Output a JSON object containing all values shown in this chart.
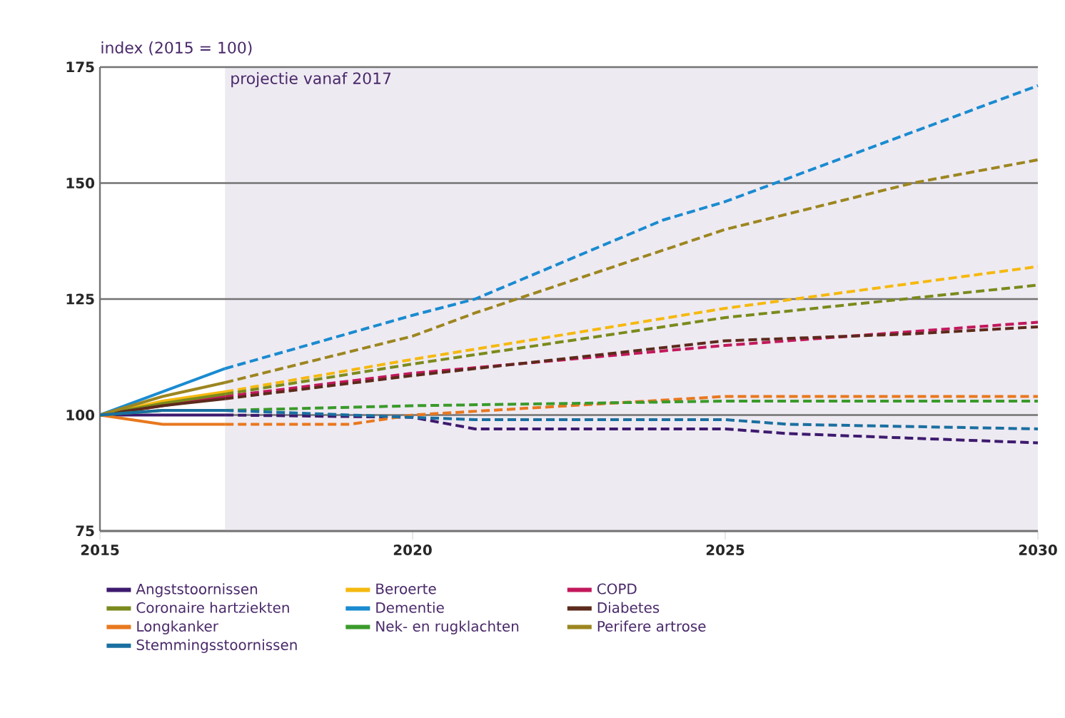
{
  "chart_data": {
    "type": "line",
    "ylabel": "index (2015 = 100)",
    "xlim": [
      2015,
      2030
    ],
    "xticks": [
      2015,
      2020,
      2025,
      2030
    ],
    "ylim": [
      75,
      175
    ],
    "yticks": [
      75,
      100,
      125,
      150,
      175
    ],
    "grid": "y",
    "legend": "bottom",
    "line_style": "dashed",
    "bands": [
      {
        "axis": "x",
        "from": 2017,
        "to": 2030,
        "label": "projectie vanaf 2017",
        "color": "#eeeaf2"
      }
    ],
    "series": [
      {
        "name": "Angststoornissen",
        "color": "#3d1a6e",
        "x": [
          2015,
          2017,
          2020,
          2021,
          2025,
          2026,
          2030
        ],
        "values": [
          100,
          100,
          99.5,
          97,
          97,
          96,
          94
        ]
      },
      {
        "name": "Beroerte",
        "color": "#f5b90f",
        "x": [
          2015,
          2016,
          2017,
          2020,
          2025,
          2030
        ],
        "values": [
          100,
          103,
          105,
          112,
          123,
          132
        ]
      },
      {
        "name": "COPD",
        "color": "#c2185b",
        "x": [
          2015,
          2016,
          2017,
          2020,
          2025,
          2028,
          2030
        ],
        "values": [
          100,
          102,
          104,
          109,
          115,
          118,
          120
        ]
      },
      {
        "name": "Coronaire hartziekten",
        "color": "#7b8a1c",
        "x": [
          2015,
          2016,
          2017,
          2020,
          2025,
          2030
        ],
        "values": [
          100,
          102.5,
          104.5,
          111,
          121,
          128
        ]
      },
      {
        "name": "Dementie",
        "color": "#1a8bd0",
        "x": [
          2015,
          2017,
          2020,
          2021,
          2024,
          2025,
          2030
        ],
        "values": [
          100,
          110,
          121.5,
          125,
          142,
          146,
          171
        ]
      },
      {
        "name": "Diabetes",
        "color": "#5c2a1c",
        "x": [
          2015,
          2016,
          2017,
          2020,
          2025,
          2028,
          2030
        ],
        "values": [
          100,
          102,
          103.5,
          108.5,
          116,
          117.5,
          119
        ]
      },
      {
        "name": "Longkanker",
        "color": "#e8781e",
        "x": [
          2015,
          2016,
          2017,
          2019,
          2020,
          2025,
          2030
        ],
        "values": [
          100,
          98,
          98,
          98,
          100,
          104,
          104
        ]
      },
      {
        "name": "Nek- en rugklachten",
        "color": "#3a9a2a",
        "x": [
          2015,
          2016,
          2017,
          2020,
          2025,
          2030
        ],
        "values": [
          100,
          101,
          101,
          102,
          103,
          103
        ]
      },
      {
        "name": "Perifere artrose",
        "color": "#9c8620",
        "x": [
          2015,
          2016,
          2017,
          2020,
          2021,
          2025,
          2028,
          2030
        ],
        "values": [
          100,
          104,
          107,
          117,
          122,
          140,
          150,
          155
        ]
      },
      {
        "name": "Stemmingsstoornissen",
        "color": "#1a6fa0",
        "x": [
          2015,
          2016,
          2017,
          2021,
          2025,
          2026,
          2030
        ],
        "values": [
          100,
          101,
          101,
          99,
          99,
          98,
          97
        ]
      }
    ]
  }
}
